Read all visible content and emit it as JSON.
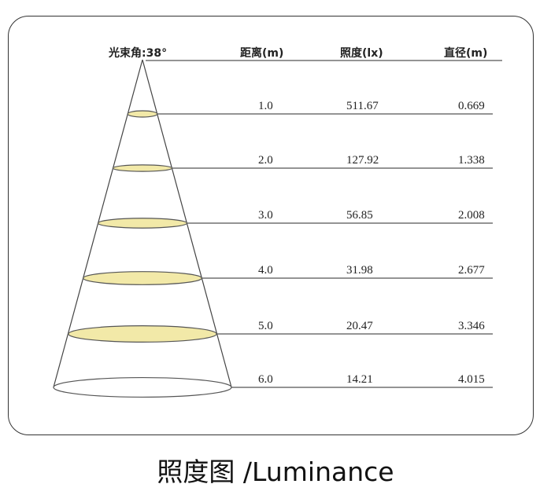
{
  "header": {
    "beam_angle": "光束角:38°",
    "col_distance": "距离(m)",
    "col_illuminance": "照度(lx)",
    "col_diameter": "直径(m)"
  },
  "rows": [
    {
      "distance": "1.0",
      "illuminance": "511.67",
      "diameter": "0.669"
    },
    {
      "distance": "2.0",
      "illuminance": "127.92",
      "diameter": "1.338"
    },
    {
      "distance": "3.0",
      "illuminance": "56.85",
      "diameter": "2.008"
    },
    {
      "distance": "4.0",
      "illuminance": "31.98",
      "diameter": "2.677"
    },
    {
      "distance": "5.0",
      "illuminance": "20.47",
      "diameter": "3.346"
    },
    {
      "distance": "6.0",
      "illuminance": "14.21",
      "diameter": "4.015"
    }
  ],
  "caption": "照度图 /Luminance",
  "colors": {
    "spot_fill": "#f2e9a8",
    "line": "#444444"
  }
}
